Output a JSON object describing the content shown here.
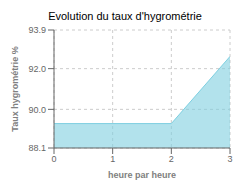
{
  "chart_data": {
    "type": "area",
    "title": "Evolution du taux d'hygrométrie",
    "xlabel": "heure par heure",
    "ylabel": "Taux hygrométrie %",
    "x": [
      0,
      2,
      3
    ],
    "values": [
      89.3,
      89.3,
      92.6
    ],
    "color": "#7ecfe0",
    "xlim": [
      0,
      3
    ],
    "ylim": [
      88.1,
      93.9
    ],
    "xticks": [
      0,
      1,
      2,
      3
    ],
    "yticks": [
      88.1,
      {
        "value": 90.0,
        "label": "90.0"
      },
      {
        "value": 92.0,
        "label": "92.0"
      },
      93.9
    ],
    "grid": true
  }
}
